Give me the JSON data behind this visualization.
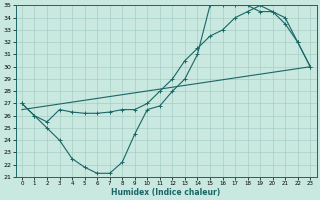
{
  "xlabel": "Humidex (Indice chaleur)",
  "xlim": [
    -0.5,
    23.5
  ],
  "ylim": [
    21,
    35
  ],
  "xticks": [
    0,
    1,
    2,
    3,
    4,
    5,
    6,
    7,
    8,
    9,
    10,
    11,
    12,
    13,
    14,
    15,
    16,
    17,
    18,
    19,
    20,
    21,
    22,
    23
  ],
  "yticks": [
    21,
    22,
    23,
    24,
    25,
    26,
    27,
    28,
    29,
    30,
    31,
    32,
    33,
    34,
    35
  ],
  "bg_color": "#c8e8e0",
  "line_color": "#1a6666",
  "grid_color": "#a0c8c0",
  "line1_x": [
    0,
    1,
    2,
    3,
    4,
    5,
    6,
    7,
    8,
    9,
    10,
    11,
    12,
    13,
    14,
    15,
    16,
    17,
    18,
    19,
    20,
    21,
    22,
    23
  ],
  "line1_y": [
    27,
    26,
    25,
    24,
    22.5,
    21.8,
    21.3,
    21.3,
    22.2,
    24.5,
    26.5,
    26.8,
    28.0,
    29.0,
    31.0,
    35.0,
    35.0,
    35.0,
    35.0,
    34.5,
    34.5,
    34.0,
    32.0,
    30.0
  ],
  "line2_x": [
    0,
    1,
    2,
    3,
    4,
    5,
    6,
    7,
    8,
    9,
    10,
    11,
    12,
    13,
    14,
    15,
    16,
    17,
    18,
    19,
    20,
    21,
    22,
    23
  ],
  "line2_y": [
    27.0,
    26.0,
    25.5,
    26.5,
    26.3,
    26.2,
    26.2,
    26.3,
    26.5,
    26.5,
    27.0,
    28.0,
    29.0,
    30.5,
    31.5,
    32.5,
    33.0,
    34.0,
    34.5,
    35.0,
    34.5,
    33.5,
    32.0,
    30.0
  ],
  "line3_x": [
    0,
    23
  ],
  "line3_y": [
    26.5,
    30.0
  ]
}
